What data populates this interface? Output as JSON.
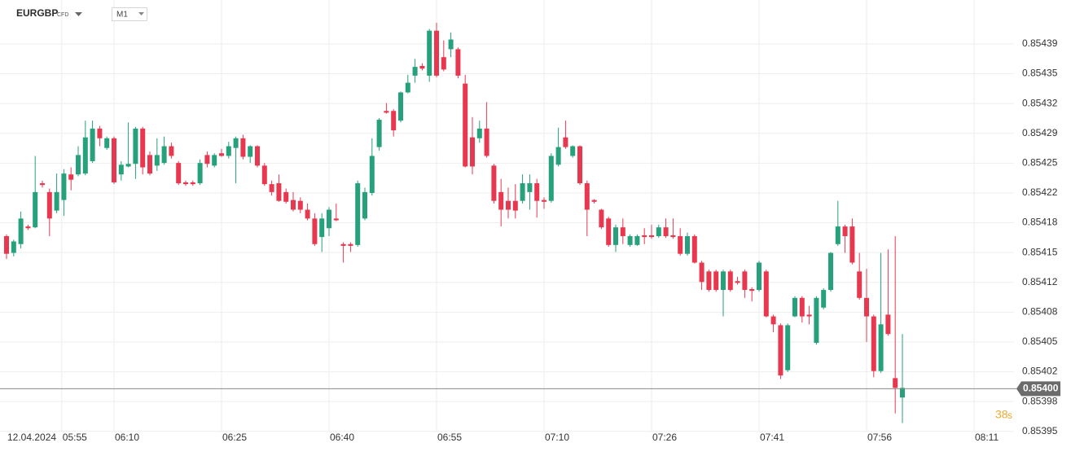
{
  "chart_data": {
    "type": "candlestick",
    "symbol": "EURGBP",
    "instrument_type": "CFD",
    "timeframe": "M1",
    "open": [
      0.854169,
      0.85415,
      0.85416,
      0.85418,
      0.854179,
      0.854229,
      0.854219,
      0.854198,
      0.85421,
      0.854239,
      0.854239,
      0.85424,
      0.854254,
      0.854291,
      0.854269,
      0.85428,
      0.854239,
      0.854248,
      0.854251,
      0.854291,
      0.854261,
      0.854249,
      0.854252,
      0.854271,
      0.854252,
      0.85423,
      0.85423,
      0.854229,
      0.854261,
      0.854249,
      0.854263,
      0.85426,
      0.854269,
      0.85428,
      0.854259,
      0.854271,
      0.854249,
      0.854228,
      0.854229,
      0.854219,
      0.85421,
      0.854209,
      0.854199,
      0.854189,
      0.854168,
      0.854178,
      0.854189,
      0.85416,
      0.85416,
      0.854159,
      0.854189,
      0.854218,
      0.85427,
      0.854311,
      0.854311,
      0.8543,
      0.854332,
      0.854351,
      0.854362,
      0.854351,
      0.854402,
      0.854372,
      0.854381,
      0.854381,
      0.854342,
      0.854281,
      0.85428,
      0.854291,
      0.854249,
      0.854219,
      0.854209,
      0.854209,
      0.854209,
      0.854219,
      0.854229,
      0.85421,
      0.854209,
      0.85425,
      0.854281,
      0.85426,
      0.854271,
      0.854229,
      0.85421,
      0.854199,
      0.854189,
      0.854159,
      0.854179,
      0.854159,
      0.854159,
      0.85417,
      0.85417,
      0.854169,
      0.854179,
      0.85417,
      0.854169,
      0.854149,
      0.854169,
      0.854139,
      0.854129,
      0.854129,
      0.854108,
      0.854129,
      0.854118,
      0.854129,
      0.854109,
      0.854108,
      0.854129,
      0.854078,
      0.854068,
      0.854017,
      0.854078,
      0.854099,
      0.85408,
      0.854048,
      0.854088,
      0.854108,
      0.85416,
      0.85418,
      0.85418,
      0.854129,
      0.854099,
      0.854078,
      0.854016,
      0.85408,
      0.854008,
      0.853986
    ],
    "high": [
      0.854171,
      0.854165,
      0.854197,
      0.854182,
      0.85426,
      0.854232,
      0.854223,
      0.85424,
      0.854245,
      0.854247,
      0.854271,
      0.8543,
      0.8543,
      0.854294,
      0.854282,
      0.854282,
      0.854254,
      0.854298,
      0.854293,
      0.854293,
      0.854265,
      0.85428,
      0.854282,
      0.854275,
      0.854254,
      0.854232,
      0.854232,
      0.854256,
      0.854265,
      0.854263,
      0.854268,
      0.854276,
      0.854282,
      0.854284,
      0.854272,
      0.854272,
      0.854252,
      0.854232,
      0.854239,
      0.854223,
      0.854219,
      0.854213,
      0.854206,
      0.854195,
      0.854195,
      0.854202,
      0.854206,
      0.854162,
      0.854162,
      0.854232,
      0.854224,
      0.85428,
      0.854303,
      0.85432,
      0.854313,
      0.854333,
      0.854352,
      0.85437,
      0.854365,
      0.854404,
      0.854411,
      0.854391,
      0.8544,
      0.854383,
      0.854352,
      0.854304,
      0.8543,
      0.854321,
      0.854251,
      0.854234,
      0.854224,
      0.854228,
      0.854239,
      0.854239,
      0.854234,
      0.854213,
      0.854263,
      0.854292,
      0.8543,
      0.854272,
      0.854272,
      0.854232,
      0.854211,
      0.8542,
      0.854191,
      0.854182,
      0.854189,
      0.854171,
      0.854171,
      0.854178,
      0.854182,
      0.854182,
      0.854189,
      0.854189,
      0.854178,
      0.854173,
      0.854171,
      0.854141,
      0.854131,
      0.854131,
      0.854131,
      0.854131,
      0.854123,
      0.854131,
      0.854111,
      0.854141,
      0.854131,
      0.85408,
      0.85407,
      0.85407,
      0.854101,
      0.854101,
      0.85409,
      0.854101,
      0.85411,
      0.854151,
      0.854209,
      0.854182,
      0.854189,
      0.85415,
      0.854132,
      0.85408,
      0.85415,
      0.854154,
      0.854169,
      0.854058
    ],
    "low": [
      0.854143,
      0.854146,
      0.854155,
      0.854176,
      0.854178,
      0.854224,
      0.854169,
      0.854195,
      0.854192,
      0.854221,
      0.854237,
      0.854238,
      0.854252,
      0.854271,
      0.854267,
      0.854228,
      0.854232,
      0.854247,
      0.854234,
      0.854239,
      0.854238,
      0.854243,
      0.85425,
      0.854257,
      0.854227,
      0.854226,
      0.854226,
      0.854227,
      0.854247,
      0.854247,
      0.854259,
      0.854257,
      0.854229,
      0.854256,
      0.854252,
      0.854247,
      0.854226,
      0.854215,
      0.854208,
      0.854206,
      0.854197,
      0.854195,
      0.854187,
      0.854158,
      0.854151,
      0.854169,
      0.854186,
      0.854139,
      0.854151,
      0.854157,
      0.854187,
      0.854215,
      0.854266,
      0.854308,
      0.854282,
      0.854298,
      0.854331,
      0.854343,
      0.854357,
      0.854344,
      0.854349,
      0.854356,
      0.854372,
      0.854348,
      0.854247,
      0.854239,
      0.854275,
      0.854258,
      0.854206,
      0.85418,
      0.854189,
      0.854189,
      0.854206,
      0.854199,
      0.85419,
      0.8542,
      0.854207,
      0.854248,
      0.854268,
      0.854258,
      0.854227,
      0.854169,
      0.854206,
      0.854177,
      0.854157,
      0.854151,
      0.85416,
      0.854157,
      0.854158,
      0.85416,
      0.854166,
      0.854167,
      0.854167,
      0.854166,
      0.854147,
      0.854147,
      0.854138,
      0.854108,
      0.854106,
      0.854106,
      0.854078,
      0.854106,
      0.854114,
      0.854099,
      0.854095,
      0.854106,
      0.854077,
      0.85406,
      0.854007,
      0.854015,
      0.854077,
      0.854071,
      0.854069,
      0.854046,
      0.854086,
      0.854106,
      0.854158,
      0.85415,
      0.854137,
      0.854097,
      0.854049,
      0.854009,
      0.854014,
      0.854056,
      0.853968,
      0.853957
    ],
    "close": [
      0.854149,
      0.854163,
      0.854189,
      0.854178,
      0.854219,
      0.854227,
      0.854189,
      0.854219,
      0.85424,
      0.854233,
      0.854261,
      0.854281,
      0.854291,
      0.85428,
      0.85428,
      0.85423,
      0.85425,
      0.854251,
      0.854291,
      0.854247,
      0.85424,
      0.854261,
      0.854271,
      0.85426,
      0.854229,
      0.854228,
      0.854228,
      0.854252,
      0.854251,
      0.854261,
      0.85426,
      0.854271,
      0.85428,
      0.854259,
      0.854271,
      0.854249,
      0.854228,
      0.854219,
      0.854209,
      0.854208,
      0.854199,
      0.854199,
      0.854189,
      0.85416,
      0.854189,
      0.854199,
      0.854187,
      0.854158,
      0.854158,
      0.854229,
      0.854219,
      0.85426,
      0.854301,
      0.854309,
      0.854289,
      0.854332,
      0.854343,
      0.854361,
      0.854359,
      0.854402,
      0.854351,
      0.854358,
      0.854392,
      0.854351,
      0.854248,
      0.854248,
      0.854291,
      0.85426,
      0.854209,
      0.854199,
      0.854199,
      0.854198,
      0.854229,
      0.854229,
      0.854209,
      0.854208,
      0.85426,
      0.85427,
      0.85427,
      0.854271,
      0.854229,
      0.854199,
      0.854208,
      0.854179,
      0.854159,
      0.854179,
      0.854169,
      0.854169,
      0.854169,
      0.854168,
      0.854168,
      0.854179,
      0.854169,
      0.854168,
      0.854149,
      0.854169,
      0.854139,
      0.854117,
      0.854108,
      0.854108,
      0.854129,
      0.854108,
      0.854116,
      0.854108,
      0.854107,
      0.854139,
      0.854078,
      0.854069,
      0.854011,
      0.854068,
      0.854099,
      0.854078,
      0.854078,
      0.854099,
      0.854108,
      0.85415,
      0.85418,
      0.854169,
      0.854139,
      0.854099,
      0.854078,
      0.854016,
      0.854069,
      0.854058,
      0.853997,
      0.853997
    ],
    "up_color": "#26a17b",
    "down_color": "#e8384f",
    "ylim": [
      0.8539474,
      0.8544368
    ],
    "yticks": [
      {
        "value": 0.854387,
        "label": "0.85439"
      },
      {
        "value": 0.8543532,
        "label": "0.85435"
      },
      {
        "value": 0.8543194,
        "label": "0.85432"
      },
      {
        "value": 0.8542856,
        "label": "0.85429"
      },
      {
        "value": 0.8542518,
        "label": "0.85425"
      },
      {
        "value": 0.854218,
        "label": "0.85422"
      },
      {
        "value": 0.8541842,
        "label": "0.85418"
      },
      {
        "value": 0.8541504,
        "label": "0.85415"
      },
      {
        "value": 0.8541166,
        "label": "0.85412"
      },
      {
        "value": 0.8540828,
        "label": "0.85408"
      },
      {
        "value": 0.854049,
        "label": "0.85405"
      },
      {
        "value": 0.8540152,
        "label": "0.85402"
      },
      {
        "value": 0.8539814,
        "label": "0.85398"
      },
      {
        "value": 0.8539476,
        "label": "0.85395"
      }
    ],
    "xlim": [
      -0.91,
      140.57
    ],
    "xticks": [
      {
        "value": 0,
        "label": "12.04.2024"
      },
      {
        "value": 7.7,
        "label": "05:55"
      },
      {
        "value": 15,
        "label": "06:10"
      },
      {
        "value": 30,
        "label": "06:25"
      },
      {
        "value": 45,
        "label": "06:40"
      },
      {
        "value": 60,
        "label": "06:55"
      },
      {
        "value": 75,
        "label": "07:10"
      },
      {
        "value": 90,
        "label": "07:26"
      },
      {
        "value": 105,
        "label": "07:41"
      },
      {
        "value": 120,
        "label": "07:56"
      },
      {
        "value": 135,
        "label": "08:11"
      }
    ],
    "current_price": {
      "value": 0.853996,
      "label": "0.85400"
    },
    "countdown": 38,
    "countdown_unit": "s",
    "grid": true
  }
}
